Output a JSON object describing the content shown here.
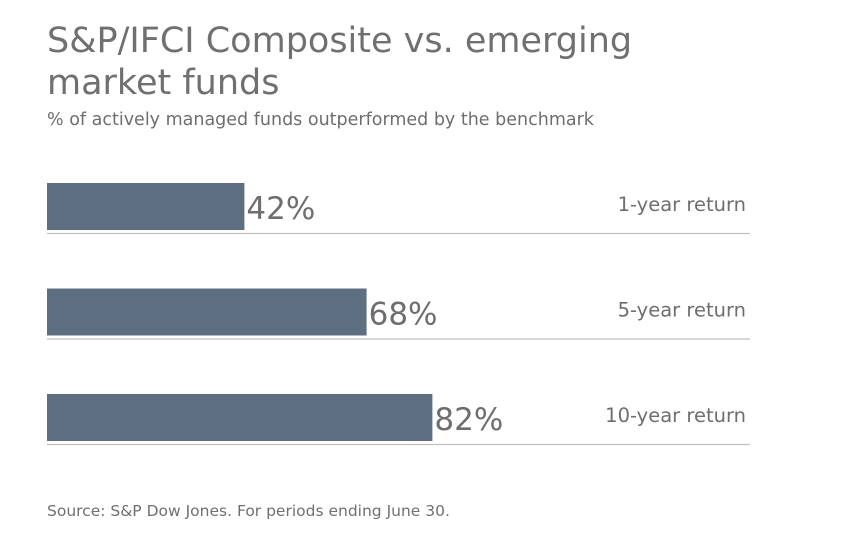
{
  "header": {
    "title": "S&P/IFCI Composite vs. emerging market funds",
    "subtitle": "% of actively managed funds outperformed by the benchmark"
  },
  "footer": {
    "source": "Source: S&P Dow Jones. For periods ending June 30."
  },
  "colors": {
    "bar": "#5f6f82",
    "rule": "#bfbfbf",
    "text": "#6e6e6e"
  },
  "chart_data": {
    "type": "bar",
    "orientation": "horizontal",
    "categories": [
      "1-year return",
      "5-year return",
      "10-year return"
    ],
    "values": [
      42,
      68,
      82
    ],
    "value_labels": [
      "42%",
      "68%",
      "82%"
    ],
    "xlim": [
      0,
      100
    ],
    "grid": false,
    "legend": "none"
  }
}
